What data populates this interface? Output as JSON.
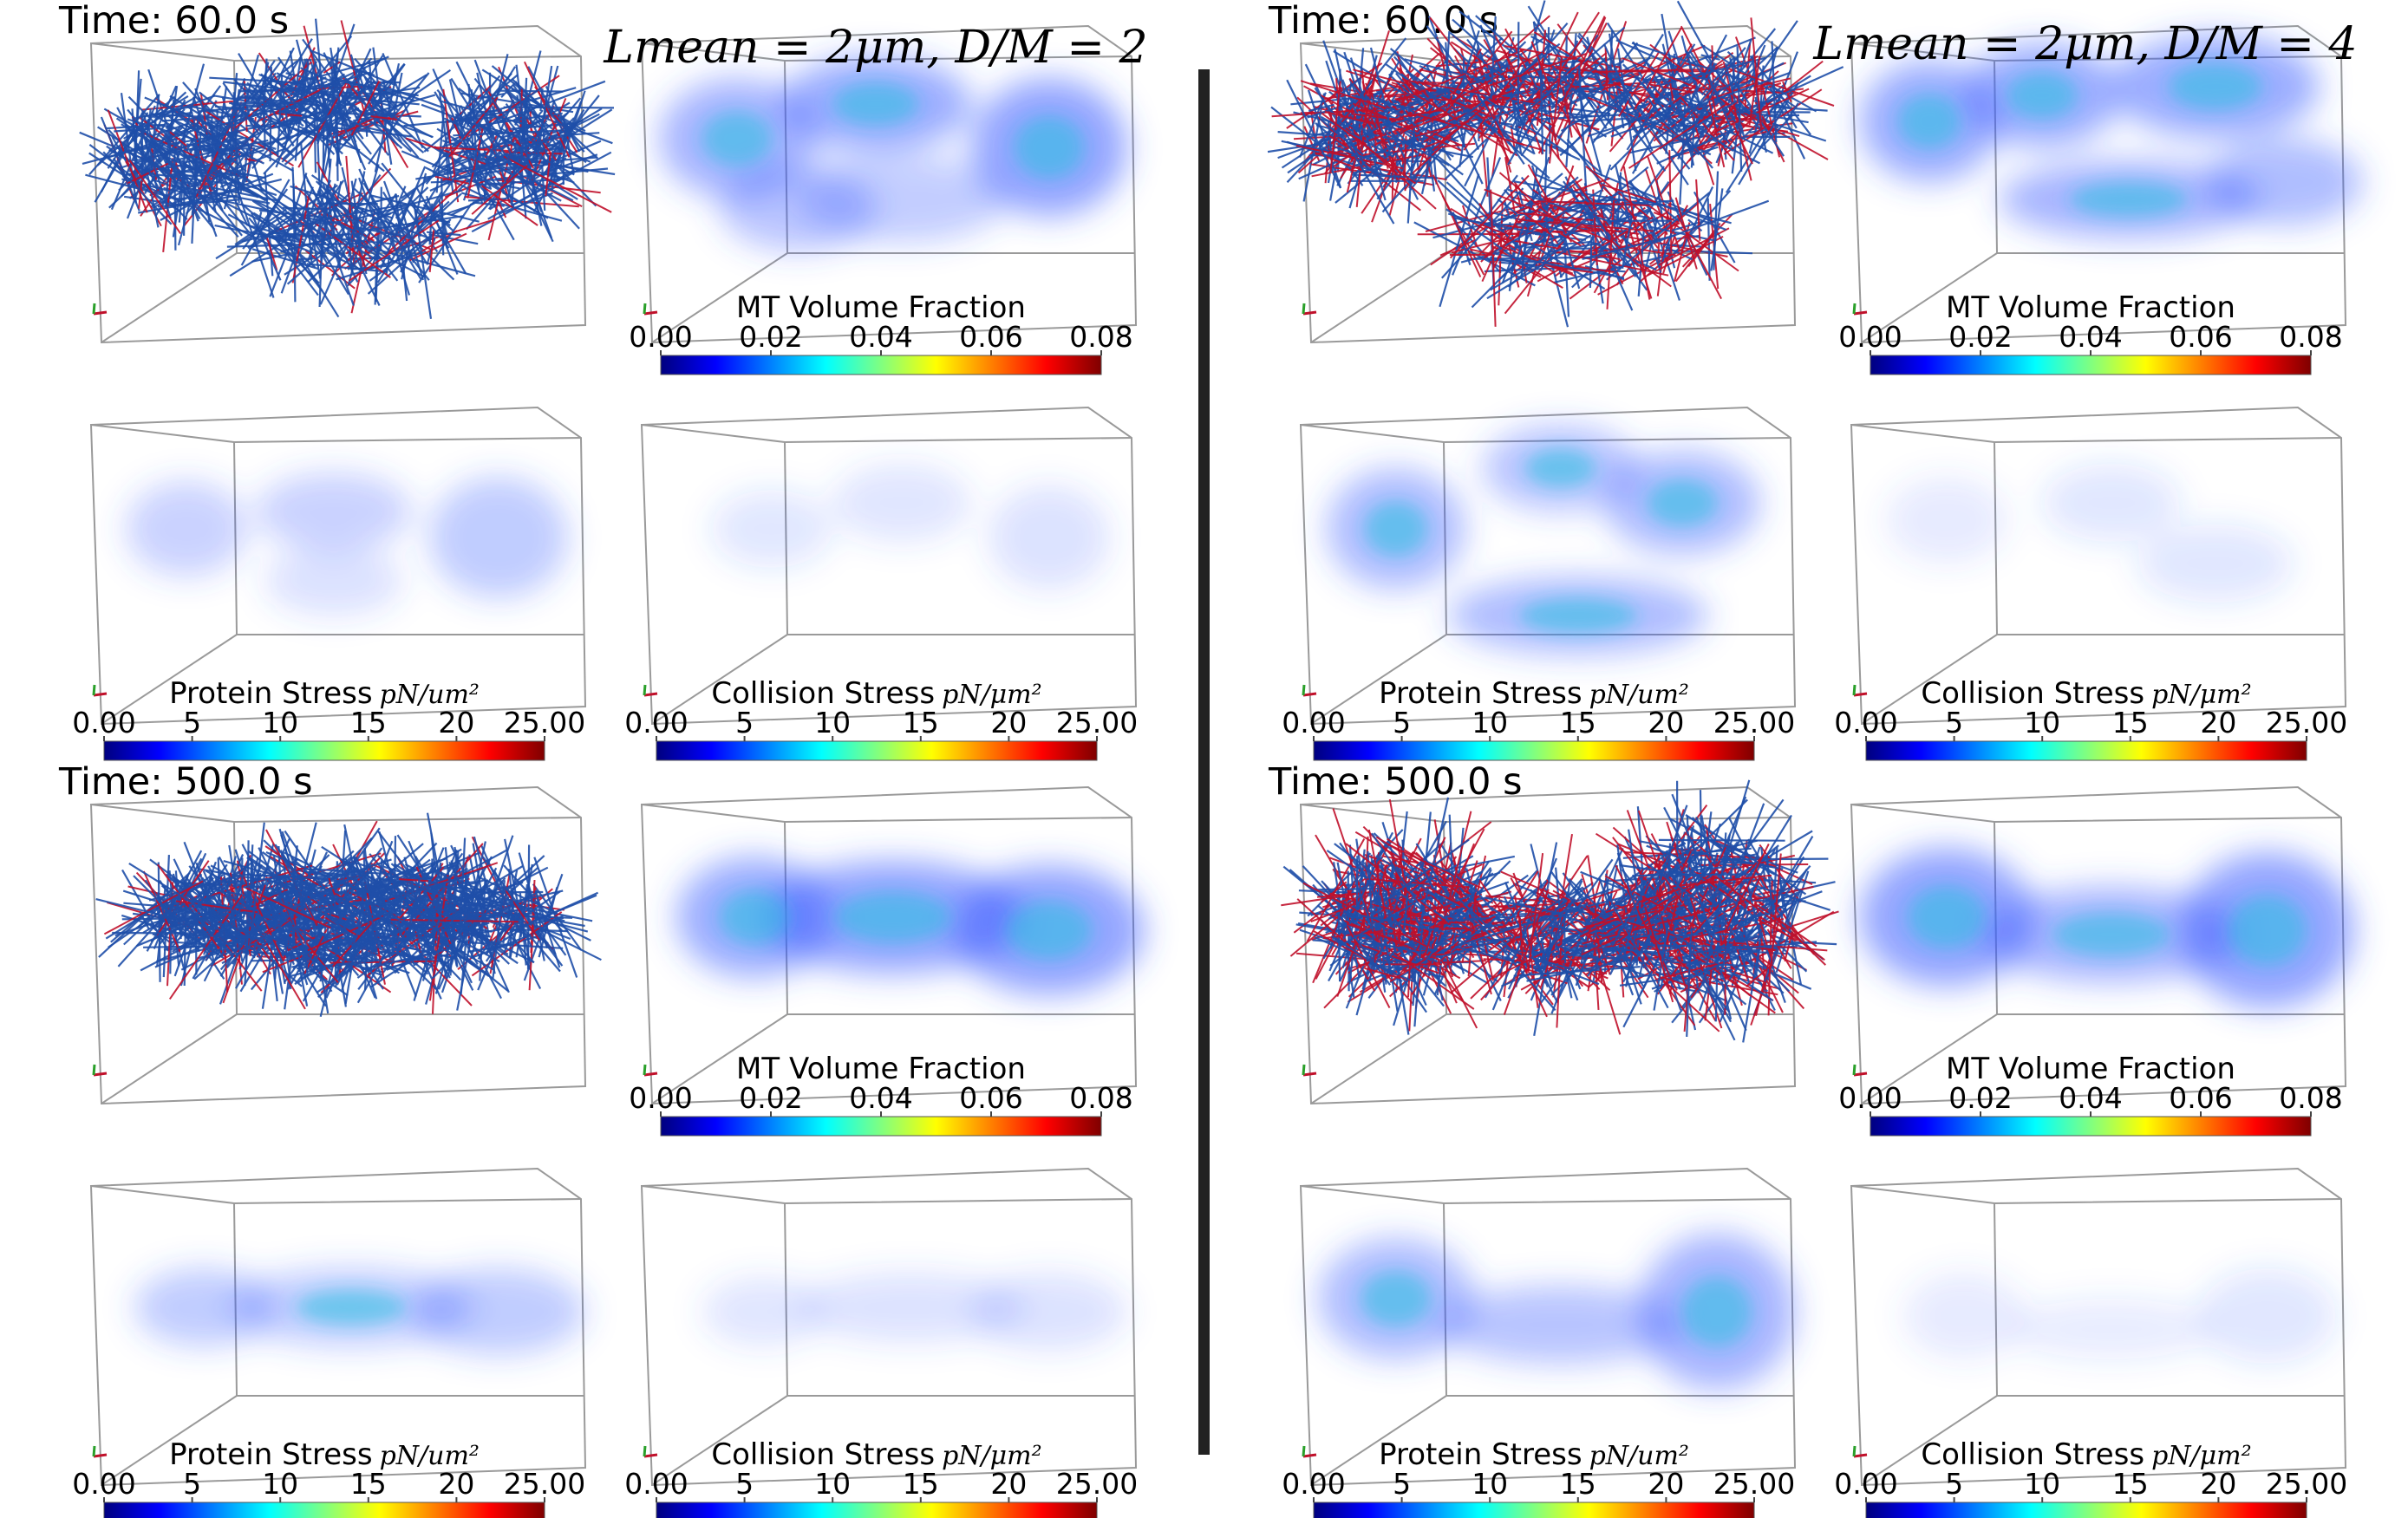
{
  "colormap": [
    "#00007f",
    "#0000ff",
    "#0080ff",
    "#00ffff",
    "#80ff80",
    "#ffff00",
    "#ff8000",
    "#ff0000",
    "#7f0000"
  ],
  "colors": {
    "fiber_blue": "#1f4fa8",
    "fiber_red": "#c0102a",
    "bar": "#222222",
    "blob": "#3a5cff",
    "blob_core": "#26c0e0"
  },
  "labels": {
    "time_60": "Time: 60.0 s",
    "time_500": "Time: 500.0 s",
    "mt_volume_fraction": "MT Volume Fraction",
    "protein_stress": "Protein Stress",
    "collision_stress": "Collision Stress",
    "unit_protein": "pN/um²",
    "unit_collision": "pN/μm²"
  },
  "formulas": {
    "left": "Lmean = 2μm, D/M = 2",
    "right": "Lmean = 2μm, D/M = 4"
  },
  "ticks": {
    "volume_fraction": [
      "0.00",
      "0.02",
      "0.04",
      "0.06",
      "0.08"
    ],
    "stress": [
      "0.00",
      "5",
      "10",
      "15",
      "20",
      "25.00"
    ]
  }
}
